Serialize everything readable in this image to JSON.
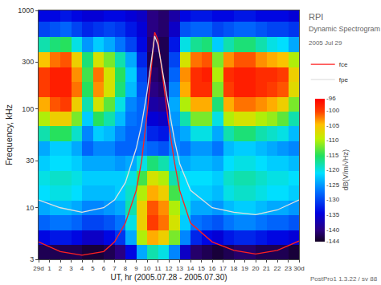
{
  "chart_data": {
    "type": "heatmap",
    "annotations": [
      "RPI",
      "Dynamic Spectrogram",
      "2005 Jul 29",
      "PostPro1 1.3.22 / sv 88"
    ],
    "x_label": "UT, hr (2005.07.28 - 2005.07.30)",
    "y_label": "Frequency, kHz",
    "colorbar_title": "dB(V/m/√Hz)",
    "log": "y",
    "grid": false,
    "legend": "right",
    "xlim": [
      0,
      24
    ],
    "xticks": [
      {
        "value": 0,
        "label": "29d"
      },
      1,
      2,
      3,
      4,
      5,
      6,
      7,
      8,
      9,
      10,
      11,
      12,
      13,
      14,
      15,
      16,
      17,
      18,
      19,
      20,
      21,
      22,
      23,
      {
        "value": 24,
        "label": "30d"
      }
    ],
    "ylim": [
      3,
      1000
    ],
    "yticks": [
      3,
      10,
      30,
      100,
      300,
      1000
    ],
    "zlim": [
      -144,
      -96
    ],
    "zticks": [
      -96,
      -100,
      -105,
      -110,
      -115,
      -120,
      -125,
      -130,
      -135,
      -140,
      -144
    ],
    "x": [
      0.5,
      1.5,
      2.5,
      3.5,
      4.5,
      5.5,
      6.5,
      7.5,
      8.5,
      9.5,
      10.5,
      11.5,
      12.5,
      13.5,
      14.5,
      15.5,
      16.5,
      17.5,
      18.5,
      19.5,
      20.5,
      21.5,
      22.5,
      23.5
    ],
    "y": [
      3.5,
      5,
      7,
      10,
      14,
      20,
      28,
      40,
      56,
      80,
      110,
      160,
      220,
      320,
      450,
      650,
      900
    ],
    "z": [
      [
        -142,
        -142,
        -142,
        -142,
        -143,
        -143,
        -142,
        -140,
        -134,
        -124,
        -118,
        -120,
        -126,
        -136,
        -141,
        -142,
        -143,
        -142,
        -141,
        -141,
        -142,
        -142,
        -142,
        -143
      ],
      [
        -134,
        -133,
        -133,
        -134,
        -136,
        -136,
        -134,
        -131,
        -124,
        -110,
        -104,
        -106,
        -112,
        -126,
        -132,
        -134,
        -135,
        -133,
        -132,
        -132,
        -133,
        -134,
        -134,
        -135
      ],
      [
        -128,
        -127,
        -127,
        -128,
        -130,
        -130,
        -129,
        -127,
        -120,
        -106,
        -100,
        -102,
        -108,
        -122,
        -127,
        -128,
        -129,
        -127,
        -126,
        -126,
        -127,
        -128,
        -128,
        -129
      ],
      [
        -124,
        -123,
        -123,
        -124,
        -126,
        -126,
        -125,
        -124,
        -118,
        -106,
        -101,
        -103,
        -110,
        -120,
        -124,
        -124,
        -125,
        -123,
        -122,
        -122,
        -123,
        -124,
        -124,
        -125
      ],
      [
        -121,
        -120,
        -120,
        -121,
        -123,
        -123,
        -123,
        -122,
        -119,
        -110,
        -104,
        -106,
        -114,
        -121,
        -122,
        -122,
        -123,
        -120,
        -119,
        -119,
        -120,
        -121,
        -121,
        -122
      ],
      [
        -120,
        -119,
        -119,
        -120,
        -122,
        -122,
        -122,
        -122,
        -120,
        -114,
        -108,
        -110,
        -118,
        -121,
        -121,
        -121,
        -122,
        -119,
        -118,
        -118,
        -119,
        -120,
        -120,
        -121
      ],
      [
        -122,
        -121,
        -121,
        -122,
        -124,
        -124,
        -124,
        -125,
        -124,
        -120,
        -116,
        -118,
        -122,
        -124,
        -123,
        -123,
        -124,
        -121,
        -120,
        -120,
        -121,
        -122,
        -122,
        -123
      ],
      [
        -124,
        -122,
        -122,
        -124,
        -128,
        -126,
        -126,
        -128,
        -128,
        -127,
        -128,
        -129,
        -126,
        -127,
        -125,
        -125,
        -127,
        -123,
        -122,
        -122,
        -123,
        -124,
        -125,
        -126
      ],
      [
        -118,
        -115,
        -115,
        -119,
        -126,
        -122,
        -123,
        -126,
        -128,
        -128,
        -132,
        -133,
        -126,
        -124,
        -120,
        -120,
        -124,
        -118,
        -116,
        -116,
        -118,
        -119,
        -120,
        -123
      ],
      [
        -110,
        -106,
        -106,
        -112,
        -122,
        -115,
        -118,
        -123,
        -127,
        -128,
        -135,
        -136,
        -125,
        -118,
        -112,
        -112,
        -120,
        -110,
        -108,
        -108,
        -110,
        -111,
        -113,
        -118
      ],
      [
        -104,
        -101,
        -100,
        -106,
        -118,
        -108,
        -113,
        -120,
        -126,
        -128,
        -138,
        -139,
        -124,
        -110,
        -104,
        -104,
        -116,
        -104,
        -102,
        -102,
        -103,
        -104,
        -106,
        -112
      ],
      [
        -100,
        -98,
        -98,
        -102,
        -115,
        -103,
        -108,
        -116,
        -123,
        -129,
        -140,
        -141,
        -126,
        -104,
        -99,
        -99,
        -112,
        -100,
        -98,
        -98,
        -99,
        -100,
        -101,
        -107
      ],
      [
        -100,
        -98,
        -98,
        -103,
        -114,
        -102,
        -108,
        -115,
        -122,
        -130,
        -141,
        -142,
        -128,
        -103,
        -99,
        -98,
        -110,
        -99,
        -98,
        -98,
        -99,
        -99,
        -100,
        -106
      ],
      [
        -105,
        -102,
        -101,
        -106,
        -116,
        -108,
        -112,
        -118,
        -124,
        -132,
        -142,
        -142,
        -130,
        -108,
        -102,
        -101,
        -112,
        -103,
        -101,
        -101,
        -103,
        -104,
        -105,
        -110
      ],
      [
        -118,
        -116,
        -115,
        -120,
        -125,
        -122,
        -124,
        -127,
        -130,
        -134,
        -141,
        -142,
        -133,
        -120,
        -117,
        -116,
        -122,
        -118,
        -116,
        -116,
        -118,
        -120,
        -121,
        -124
      ],
      [
        -130,
        -129,
        -128,
        -130,
        -132,
        -131,
        -130,
        -131,
        -133,
        -135,
        -140,
        -141,
        -136,
        -129,
        -128,
        -128,
        -130,
        -129,
        -128,
        -128,
        -129,
        -130,
        -130,
        -131
      ],
      [
        -134,
        -134,
        -133,
        -134,
        -135,
        -135,
        -134,
        -134,
        -135,
        -136,
        -140,
        -141,
        -138,
        -134,
        -133,
        -133,
        -134,
        -134,
        -133,
        -133,
        -134,
        -134,
        -134,
        -135
      ]
    ],
    "series": [
      {
        "name": "fce",
        "color": "#ff2020",
        "line_style": "solid",
        "x": [
          0,
          2,
          4,
          6,
          7,
          8,
          9,
          9.5,
          10,
          10.4,
          10.7,
          11,
          11.4,
          12,
          12.5,
          13,
          14,
          16,
          18,
          20,
          22,
          24
        ],
        "values": [
          4.5,
          3.6,
          3.3,
          3.6,
          4.5,
          7,
          15,
          30,
          90,
          250,
          600,
          500,
          220,
          70,
          30,
          15,
          7,
          4.5,
          3.7,
          3.4,
          3.7,
          4.6
        ]
      },
      {
        "name": "fpe",
        "color": "#e0e0e0",
        "line_style": "solid",
        "x": [
          0,
          2,
          4,
          6,
          7,
          8,
          9,
          9.5,
          10,
          10.4,
          10.7,
          11,
          11.4,
          12,
          12.5,
          13,
          14,
          16,
          18,
          20,
          22,
          24
        ],
        "values": [
          12,
          10,
          9,
          10,
          12,
          18,
          40,
          70,
          150,
          300,
          550,
          450,
          250,
          100,
          50,
          28,
          15,
          10,
          9,
          8.5,
          9.5,
          12
        ]
      }
    ]
  }
}
